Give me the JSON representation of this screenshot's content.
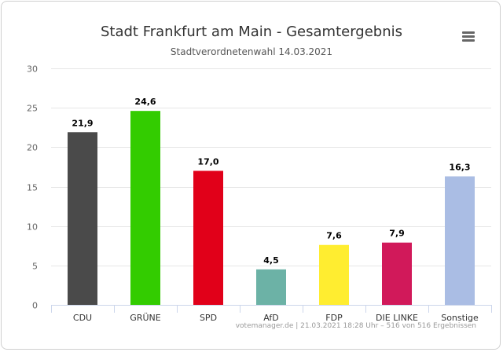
{
  "chart_data": {
    "type": "bar",
    "title": "Stadt Frankfurt am Main - Gesamtergebnis",
    "subtitle": "Stadtverordnetenwahl 14.03.2021",
    "categories": [
      "CDU",
      "GRÜNE",
      "SPD",
      "AfD",
      "FDP",
      "DIE LINKE",
      "Sonstige"
    ],
    "values": [
      21.9,
      24.6,
      17.0,
      4.5,
      7.6,
      7.9,
      16.3
    ],
    "value_labels": [
      "21,9",
      "24,6",
      "17,0",
      "4,5",
      "7,6",
      "7,9",
      "16,3"
    ],
    "colors": [
      "#4a4a4a",
      "#33cc00",
      "#e10019",
      "#6cb2a6",
      "#ffed30",
      "#d1195a",
      "#aabde4"
    ],
    "ylim": [
      0,
      30
    ],
    "yticks": [
      0,
      5,
      10,
      15,
      20,
      25,
      30
    ],
    "grid": true,
    "legend": "none",
    "credits": "votemanager.de | 21.03.2021 18:28 Uhr – 516 von 516 Ergebnissen"
  },
  "menu_icon": "hamburger-menu-icon"
}
